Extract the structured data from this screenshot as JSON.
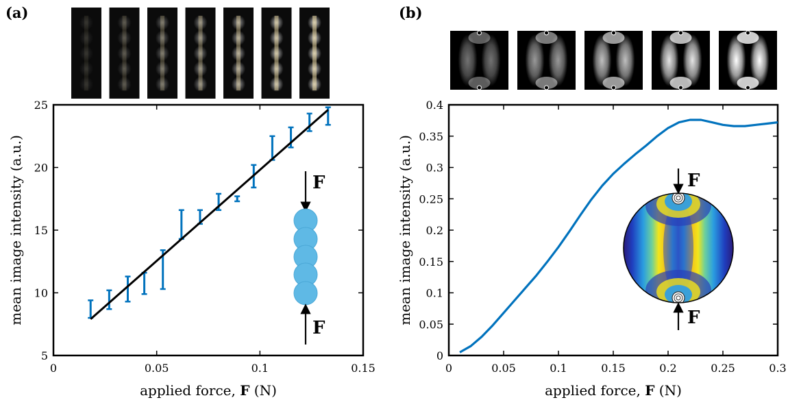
{
  "panel_labels": {
    "a": "(a)",
    "b": "(b)"
  },
  "force_symbol": "F",
  "chart_data": [
    {
      "type": "scatter",
      "panel": "(a)",
      "xlabel_prefix": "applied force, ",
      "xlabel_symbol": "F",
      "xlabel_suffix": " (N)",
      "ylabel": "mean image intensity (a.u.)",
      "xlim": [
        0,
        0.15
      ],
      "ylim": [
        5,
        25
      ],
      "xticks": [
        0,
        0.05,
        0.1,
        0.15
      ],
      "xtick_labels": [
        "0",
        "0.05",
        "0.1",
        "0.15"
      ],
      "yticks": [
        5,
        10,
        15,
        20,
        25
      ],
      "ytick_labels": [
        "5",
        "10",
        "15",
        "20",
        "25"
      ],
      "grid": false,
      "series": [
        {
          "kind": "errorbar",
          "color": "#0072BD",
          "x": [
            0.018,
            0.027,
            0.036,
            0.044,
            0.053,
            0.062,
            0.071,
            0.08,
            0.089,
            0.097,
            0.106,
            0.115,
            0.124,
            0.133
          ],
          "lower": [
            8.0,
            8.7,
            9.3,
            9.9,
            10.3,
            14.3,
            15.5,
            16.6,
            17.3,
            18.4,
            20.6,
            21.6,
            22.9,
            23.4
          ],
          "upper": [
            9.4,
            10.2,
            11.3,
            11.6,
            13.4,
            16.6,
            16.6,
            17.9,
            17.7,
            20.2,
            22.5,
            23.2,
            24.3,
            24.8
          ]
        },
        {
          "kind": "fit-line",
          "color": "#000000",
          "x": [
            0.018,
            0.133
          ],
          "y": [
            7.9,
            24.6
          ]
        }
      ],
      "photos": {
        "count": 7,
        "brightness": [
          0.15,
          0.3,
          0.45,
          0.6,
          0.75,
          0.9,
          1.0
        ]
      }
    },
    {
      "type": "line",
      "panel": "(b)",
      "xlabel_prefix": "applied force, ",
      "xlabel_symbol": "F",
      "xlabel_suffix": " (N)",
      "ylabel": "mean image intensity (a.u.)",
      "xlim": [
        0,
        0.3
      ],
      "ylim": [
        0,
        0.4
      ],
      "xticks": [
        0,
        0.05,
        0.1,
        0.15,
        0.2,
        0.25,
        0.3
      ],
      "xtick_labels": [
        "0",
        "0.05",
        "0.1",
        "0.15",
        "0.2",
        "0.25",
        "0.3"
      ],
      "yticks": [
        0,
        0.05,
        0.1,
        0.15,
        0.2,
        0.25,
        0.3,
        0.35,
        0.4
      ],
      "ytick_labels": [
        "0",
        "0.05",
        "0.1",
        "0.15",
        "0.2",
        "0.25",
        "0.3",
        "0.35",
        "0.4"
      ],
      "grid": false,
      "series": [
        {
          "color": "#0072BD",
          "x": [
            0.01,
            0.02,
            0.03,
            0.04,
            0.05,
            0.06,
            0.07,
            0.08,
            0.09,
            0.1,
            0.11,
            0.12,
            0.13,
            0.14,
            0.15,
            0.16,
            0.17,
            0.18,
            0.19,
            0.2,
            0.21,
            0.22,
            0.23,
            0.24,
            0.25,
            0.26,
            0.27,
            0.28,
            0.29,
            0.3
          ],
          "y": [
            0.005,
            0.015,
            0.03,
            0.048,
            0.068,
            0.088,
            0.108,
            0.128,
            0.15,
            0.173,
            0.198,
            0.224,
            0.249,
            0.271,
            0.29,
            0.306,
            0.321,
            0.335,
            0.35,
            0.363,
            0.372,
            0.376,
            0.376,
            0.372,
            0.368,
            0.366,
            0.366,
            0.368,
            0.37,
            0.372
          ]
        }
      ],
      "simulations": {
        "count": 5,
        "brightness": [
          0.45,
          0.6,
          0.75,
          0.9,
          1.0
        ]
      }
    }
  ]
}
